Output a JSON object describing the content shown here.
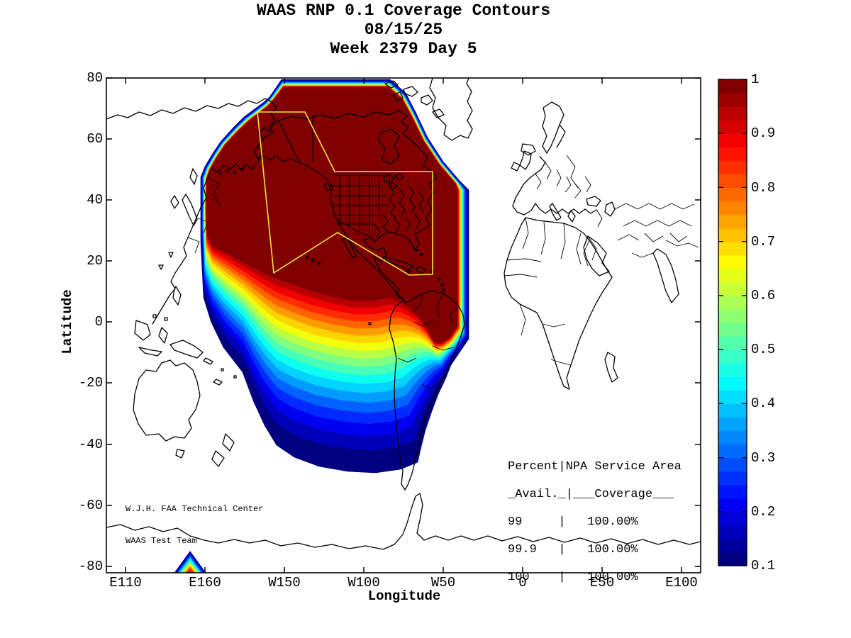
{
  "title": {
    "line1": "WAAS RNP 0.1 Coverage Contours",
    "line2": "08/15/25",
    "line3": "Week 2379 Day 5"
  },
  "axes": {
    "x_label": "Longitude",
    "y_label": "Latitude",
    "x_tick_labels": [
      "E110",
      "E160",
      "W150",
      "W100",
      "W50",
      "0",
      "E50",
      "E100"
    ],
    "y_tick_labels": [
      "80",
      "60",
      "40",
      "20",
      "0",
      "-20",
      "-40",
      "-60",
      "-80"
    ]
  },
  "colorbar": {
    "tick_labels": [
      "1",
      "0.9",
      "0.8",
      "0.7",
      "0.6",
      "0.5",
      "0.4",
      "0.3",
      "0.2",
      "0.1"
    ],
    "min": 0.1,
    "max": 1.0,
    "colormap": "jet",
    "n_bands": 36
  },
  "stats_table": {
    "rows": [
      "Percent|NPA Service Area",
      "_Avail._|___Coverage___",
      "99     |   100.00%",
      "99.9   |   100.00%",
      "100    |   100.00%"
    ]
  },
  "credit": {
    "line1": "W.J.H. FAA Technical Center",
    "line2": "WAAS Test Team"
  },
  "chart_data": {
    "type": "heatmap",
    "subtype": "filled-contour-geographic-map",
    "title": "WAAS RNP 0.1 Coverage Contours",
    "date": "08/15/25",
    "gps_week": "2379",
    "gps_day": "5",
    "xlabel": "Longitude",
    "ylabel": "Latitude",
    "x_ticks": [
      "E110",
      "E160",
      "W150",
      "W100",
      "W50",
      "0",
      "E50",
      "E100"
    ],
    "y_ticks": [
      80,
      60,
      40,
      20,
      0,
      -20,
      -40,
      -60,
      -80
    ],
    "x_range_deg_east_of_E110": [
      0,
      350
    ],
    "y_range": [
      -82,
      80
    ],
    "grid": false,
    "legend_position": "right-colorbar",
    "colorbar": {
      "label_values": [
        1,
        0.9,
        0.8,
        0.7,
        0.6,
        0.5,
        0.4,
        0.3,
        0.2,
        0.1
      ],
      "min": 0.1,
      "max": 1.0,
      "colormap": "jet",
      "discrete_bands": 36
    },
    "contour_levels": [
      0.1,
      0.15,
      0.2,
      0.25,
      0.3,
      0.35,
      0.4,
      0.45,
      0.5,
      0.55,
      0.6,
      0.65,
      0.7,
      0.75,
      0.8,
      0.85,
      0.9,
      0.95,
      1.0
    ],
    "description": "Filled availability contours (0.1 to 1.0, jet colormap) covering North America and adjacent oceans; dark-red core (availability ~1.0) over CONUS, Alaska and Canada, grading through red/orange/yellow/cyan/blue toward the south Pacific edge near 50S; sharp eastern cutoff near W40; small contour peak at the Antarctic coast near E155; yellow outline marks the NPA service area (Alaska + CONUS/offshore boundary).",
    "availability_table": {
      "columns": [
        "Percent Avail.",
        "NPA Service Area Coverage"
      ],
      "rows": [
        [
          "99",
          "100.00%"
        ],
        [
          "99.9",
          "100.00%"
        ],
        [
          "100",
          "100.00%"
        ]
      ]
    },
    "annotations": [
      "W.J.H. FAA Technical Center",
      "WAAS Test Team"
    ]
  }
}
